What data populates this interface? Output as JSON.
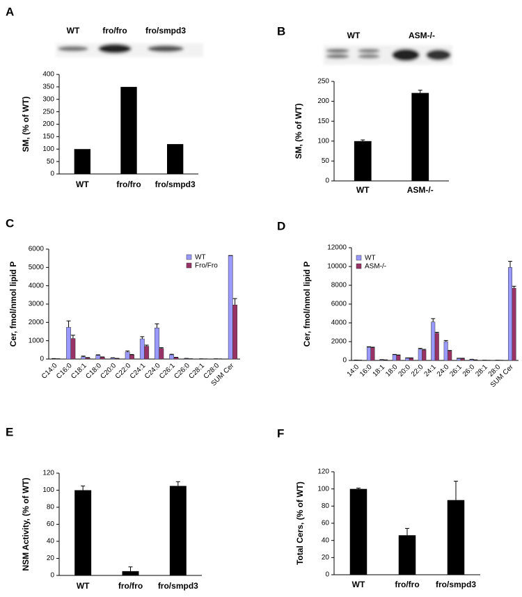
{
  "chart_data": [
    {
      "type": "bar",
      "panel": "A",
      "blot_labels": [
        "WT",
        "fro/fro",
        "fro/smpd3"
      ],
      "ylabel": "SM, (% of WT)",
      "categories": [
        "WT",
        "fro/fro",
        "fro/smpd3"
      ],
      "values": [
        100,
        350,
        120
      ],
      "color": "#000000",
      "ylim": [
        0,
        400
      ],
      "yticks": [
        0,
        50,
        100,
        150,
        200,
        250,
        300,
        350,
        400
      ]
    },
    {
      "type": "bar",
      "panel": "B",
      "blot_labels": [
        "WT",
        "ASM-/-"
      ],
      "ylabel": "SM, (% of WT)",
      "categories": [
        "WT",
        "ASM-/-"
      ],
      "values": [
        100,
        221
      ],
      "errors": [
        3,
        7
      ],
      "color": "#000000",
      "ylim": [
        0,
        250
      ],
      "yticks": [
        0,
        50,
        100,
        150,
        200,
        250
      ]
    },
    {
      "type": "grouped-bar",
      "panel": "C",
      "ylabel": "Cer, fmol/nmol lipid P",
      "categories": [
        "C14:0",
        "C16:0",
        "C18:1",
        "C18:0",
        "C20:0",
        "C22:0",
        "C24:1",
        "C24:0",
        "C26:1",
        "C26:0",
        "C28:1",
        "C28:0",
        "SUM Cer"
      ],
      "series": [
        {
          "name": "WT",
          "color": "#9999ff",
          "values": [
            20,
            1730,
            120,
            200,
            60,
            380,
            1100,
            1700,
            230,
            30,
            10,
            10,
            5650
          ],
          "errors": [
            5,
            350,
            40,
            30,
            10,
            60,
            120,
            220,
            30,
            5,
            2,
            2,
            0
          ]
        },
        {
          "name": "Fro/Fro",
          "color": "#993366",
          "values": [
            10,
            1120,
            60,
            100,
            30,
            220,
            700,
            580,
            80,
            10,
            5,
            5,
            2950
          ],
          "errors": [
            2,
            180,
            20,
            15,
            5,
            30,
            60,
            40,
            15,
            2,
            1,
            1,
            350
          ]
        }
      ],
      "ylim": [
        0,
        6000
      ],
      "yticks": [
        0,
        1000,
        2000,
        3000,
        4000,
        5000,
        6000
      ]
    },
    {
      "type": "grouped-bar",
      "panel": "D",
      "ylabel": "Cer, fmol/nmol lipid P",
      "categories": [
        "14:0",
        "16:0",
        "18:1",
        "18:0",
        "20:0",
        "22:0",
        "24:1",
        "24:0",
        "26:1",
        "26:0",
        "28:1",
        "28:0",
        "SUM Cer"
      ],
      "series": [
        {
          "name": "WT",
          "color": "#9999ff",
          "values": [
            30,
            1400,
            80,
            600,
            250,
            1200,
            4100,
            2000,
            200,
            100,
            20,
            20,
            9900
          ],
          "errors": [
            5,
            60,
            10,
            40,
            20,
            80,
            350,
            120,
            30,
            20,
            3,
            3,
            650
          ]
        },
        {
          "name": "ASM-/-",
          "color": "#993366",
          "values": [
            20,
            1350,
            50,
            550,
            250,
            1100,
            2900,
            1000,
            200,
            50,
            10,
            10,
            7700
          ],
          "errors": [
            3,
            60,
            8,
            30,
            20,
            80,
            100,
            60,
            30,
            10,
            2,
            2,
            200
          ]
        }
      ],
      "ylim": [
        0,
        12000
      ],
      "yticks": [
        0,
        2000,
        4000,
        6000,
        8000,
        10000,
        12000
      ]
    },
    {
      "type": "bar",
      "panel": "E",
      "ylabel": "NSM Activity, (% of WT)",
      "categories": [
        "WT",
        "fro/fro",
        "fro/smpd3"
      ],
      "values": [
        100,
        5,
        105
      ],
      "errors": [
        5,
        5,
        5
      ],
      "color": "#000000",
      "ylim": [
        0,
        120
      ],
      "yticks": [
        0,
        20,
        40,
        60,
        80,
        100,
        120
      ]
    },
    {
      "type": "bar",
      "panel": "F",
      "ylabel": "Total Cers, (% of WT)",
      "categories": [
        "WT",
        "fro/fro",
        "fro/smpd3"
      ],
      "values": [
        100,
        46,
        87
      ],
      "errors": [
        1,
        8,
        22
      ],
      "color": "#000000",
      "ylim": [
        0,
        120
      ],
      "yticks": [
        0,
        20,
        40,
        60,
        80,
        100,
        120
      ]
    }
  ]
}
